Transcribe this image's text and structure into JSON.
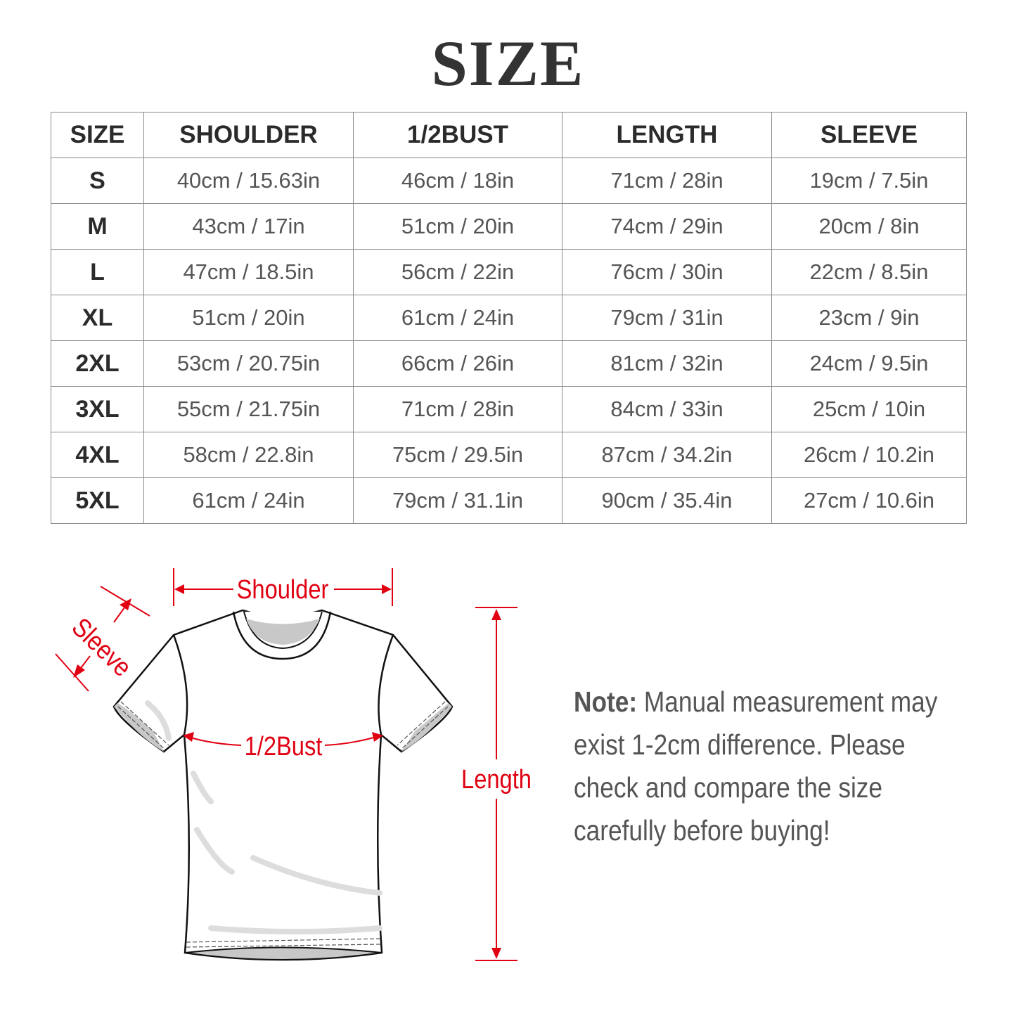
{
  "title": "SIZE",
  "table": {
    "headers": [
      "SIZE",
      "SHOULDER",
      "1/2BUST",
      "LENGTH",
      "SLEEVE"
    ],
    "rows": [
      [
        "S",
        "40cm / 15.63in",
        "46cm / 18in",
        "71cm / 28in",
        "19cm / 7.5in"
      ],
      [
        "M",
        "43cm / 17in",
        "51cm / 20in",
        "74cm / 29in",
        "20cm / 8in"
      ],
      [
        "L",
        "47cm / 18.5in",
        "56cm / 22in",
        "76cm / 30in",
        "22cm / 8.5in"
      ],
      [
        "XL",
        "51cm / 20in",
        "61cm / 24in",
        "79cm / 31in",
        "23cm / 9in"
      ],
      [
        "2XL",
        "53cm / 20.75in",
        "66cm / 26in",
        "81cm / 32in",
        "24cm / 9.5in"
      ],
      [
        "3XL",
        "55cm / 21.75in",
        "71cm / 28in",
        "84cm / 33in",
        "25cm / 10in"
      ],
      [
        "4XL",
        "58cm / 22.8in",
        "75cm / 29.5in",
        "87cm / 34.2in",
        "26cm / 10.2in"
      ],
      [
        "5XL",
        "61cm / 24in",
        "79cm / 31.1in",
        "90cm / 35.4in",
        "27cm / 10.6in"
      ]
    ]
  },
  "diagram": {
    "shoulder_label": "Shoulder",
    "sleeve_label": "Sleeve",
    "bust_label": "1/2Bust",
    "length_label": "Length",
    "accent_color": "#e00012"
  },
  "note": {
    "label": "Note:",
    "text": "Manual measurement may exist 1-2cm difference. Please check and compare the size carefully before buying!"
  }
}
